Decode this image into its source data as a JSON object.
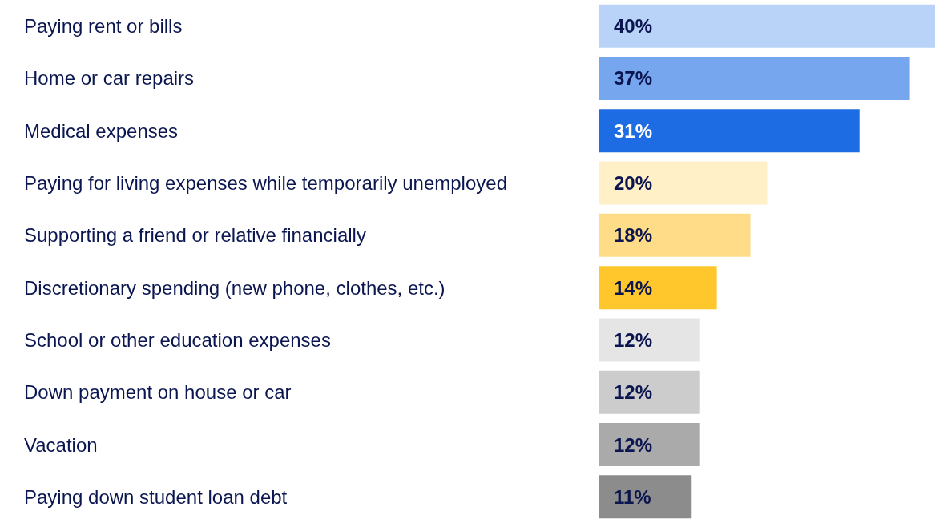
{
  "chart_data": {
    "type": "bar",
    "orientation": "horizontal",
    "categories": [
      "Paying rent or bills",
      "Home or car repairs",
      "Medical expenses",
      "Paying for living expenses while temporarily unemployed",
      "Supporting a friend or relative financially",
      "Discretionary spending (new phone, clothes, etc.)",
      "School or other education expenses",
      "Down payment on house or car",
      "Vacation",
      "Paying down student loan debt"
    ],
    "values": [
      40,
      37,
      31,
      20,
      18,
      14,
      12,
      12,
      12,
      11
    ],
    "colors": [
      "#b9d2f7",
      "#76a6ee",
      "#1e6ce3",
      "#fff0c8",
      "#ffdd88",
      "#ffc72c",
      "#e5e5e5",
      "#cccccc",
      "#aaaaaa",
      "#8c8c8c"
    ],
    "xlim": [
      0,
      40
    ],
    "value_labels": [
      "40%",
      "37%",
      "31%",
      "20%",
      "18%",
      "14%",
      "12%",
      "12%",
      "12%",
      "11%"
    ]
  }
}
